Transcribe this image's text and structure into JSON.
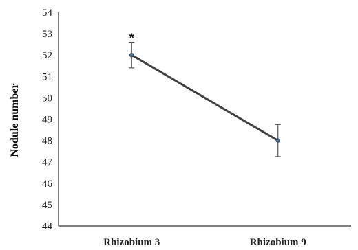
{
  "chart_data": {
    "type": "line",
    "categories": [
      "Rhizobium 3",
      "Rhizobium 9"
    ],
    "series": [
      {
        "values": [
          52.0,
          48.0
        ],
        "error": [
          0.6,
          0.75
        ]
      }
    ],
    "xlabel": "",
    "ylabel": "Nodule number",
    "ylim": [
      44,
      54
    ],
    "yticks": [
      44,
      45,
      46,
      47,
      48,
      49,
      50,
      51,
      52,
      53,
      54
    ],
    "annotations": [
      {
        "text": "*",
        "category": "Rhizobium 3"
      }
    ],
    "grid": false,
    "colors": {
      "line": "#404040",
      "marker": "#4a6a88",
      "axis": "#000000"
    }
  }
}
